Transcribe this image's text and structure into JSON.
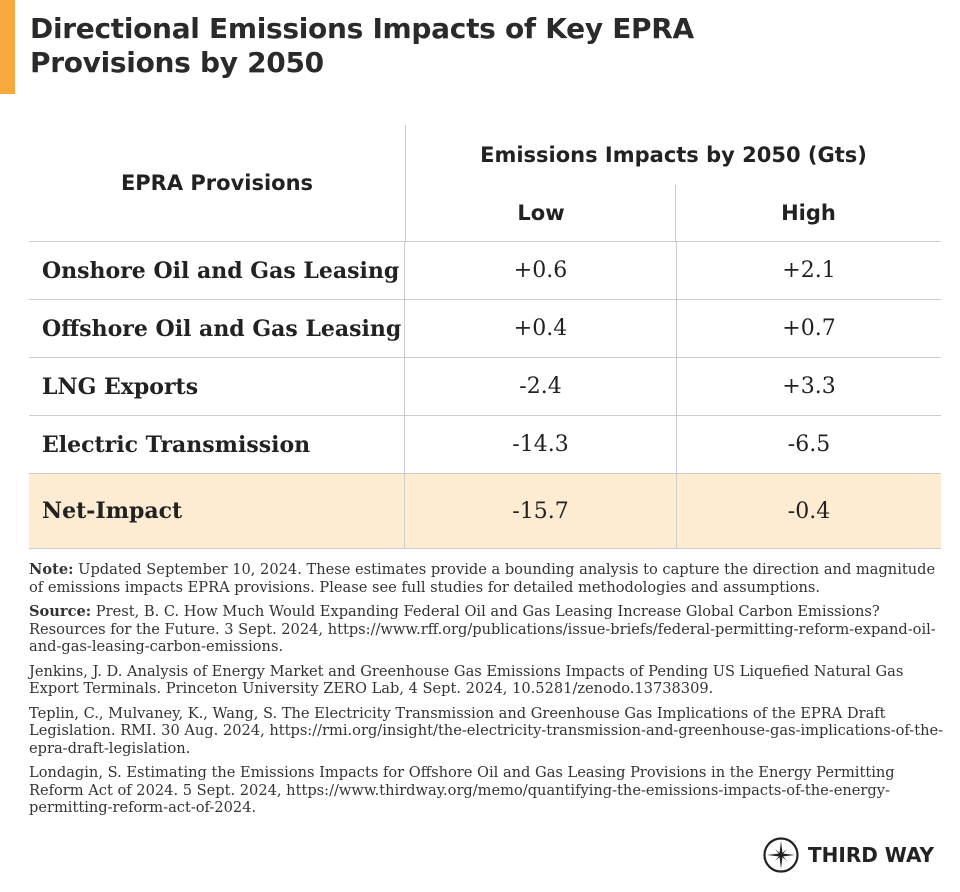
{
  "title": "Directional Emissions Impacts of Key EPRA Provisions by 2050",
  "accent_color": "#f7a93b",
  "highlight_color": "#fdebd2",
  "table": {
    "provisions_header": "EPRA Provisions",
    "group_header": "Emissions Impacts by 2050 (Gts)",
    "low_header": "Low",
    "high_header": "High",
    "rows": [
      {
        "provision": "Onshore Oil and Gas Leasing",
        "low": "+0.6",
        "high": "+2.1"
      },
      {
        "provision": "Offshore Oil and Gas Leasing",
        "low": "+0.4",
        "high": "+0.7"
      },
      {
        "provision": "LNG Exports",
        "low": "-2.4",
        "high": "+3.3"
      },
      {
        "provision": "Electric Transmission",
        "low": "-14.3",
        "high": "-6.5"
      }
    ],
    "net": {
      "provision": "Net-Impact",
      "low": "-15.7",
      "high": "-0.4"
    }
  },
  "notes": {
    "note_label": "Note:",
    "note_text": " Updated September 10, 2024. These estimates provide a bounding analysis to capture the direction and magnitude of emissions impacts EPRA provisions. Please see full studies for detailed methodologies and assumptions.",
    "source_label": "Source:",
    "source_text": " Prest, B. C. How Much Would Expanding Federal Oil and Gas Leasing Increase Global Carbon Emissions? Resources for the Future. 3 Sept. 2024, https://www.rff.org/publications/issue-briefs/federal-permitting-reform-expand-oil-and-gas-leasing-carbon-emissions.",
    "refs": [
      "Jenkins, J. D. Analysis of Energy Market and Greenhouse Gas Emissions Impacts of Pending US Liquefied Natural Gas Export Terminals. Princeton University ZERO Lab, 4 Sept. 2024, 10.5281/zenodo.13738309.",
      "Teplin, C., Mulvaney, K., Wang, S. The Electricity Transmission and Greenhouse Gas Implications of the EPRA Draft Legislation. RMI. 30 Aug. 2024, https://rmi.org/insight/the-electricity-transmission-and-greenhouse-gas-implications-of-the-epra-draft-legislation.",
      "Londagin, S. Estimating the Emissions Impacts for Offshore Oil and Gas Leasing Provisions in the Energy Permitting Reform Act of 2024. 5 Sept. 2024, https://www.thirdway.org/memo/quantifying-the-emissions-impacts-of-the-energy-permitting-reform-act-of-2024."
    ]
  },
  "logo": {
    "name": "THIRD WAY",
    "icon": "compass-star-icon"
  }
}
